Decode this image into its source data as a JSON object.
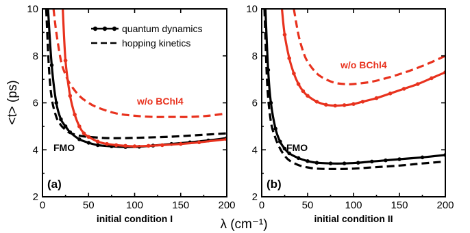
{
  "colors": {
    "red": "#e8321e",
    "black": "#000000"
  },
  "shared": {
    "xlabel": "λ (cm⁻¹)",
    "ylabel": "<t> (ps)"
  },
  "legend": {
    "entries": [
      {
        "label": "quantum dynamics",
        "style": "solid-with-dots"
      },
      {
        "label": "hopping kinetics",
        "style": "dashed"
      }
    ],
    "placement": "top-right of panel (a)"
  },
  "chart_data": [
    {
      "type": "line",
      "panel_label": "(a)",
      "xlabel": "initial condition I",
      "xlim": [
        0,
        200
      ],
      "ylim": [
        2,
        10
      ],
      "xticks": [
        0,
        50,
        100,
        150,
        200
      ],
      "yticks": [
        2,
        4,
        6,
        8,
        10
      ],
      "annotations": [
        {
          "text": "FMO",
          "color": "black"
        },
        {
          "text": "w/o BChl4",
          "color": "red"
        }
      ],
      "series": [
        {
          "name": "FMO quantum dynamics",
          "color": "black",
          "style": "solid-with-dots",
          "x": [
            6,
            10,
            15,
            20,
            25,
            30,
            40,
            50,
            60,
            75,
            90,
            105,
            120,
            140,
            160,
            180,
            200
          ],
          "y": [
            10,
            7.6,
            6.0,
            5.3,
            5.0,
            4.75,
            4.45,
            4.3,
            4.2,
            4.15,
            4.12,
            4.13,
            4.18,
            4.25,
            4.32,
            4.4,
            4.5
          ]
        },
        {
          "name": "FMO hopping kinetics",
          "color": "black",
          "style": "dashed",
          "x": [
            4,
            7,
            10,
            15,
            20,
            25,
            30,
            40,
            50,
            70,
            90,
            110,
            140,
            170,
            200
          ],
          "y": [
            10,
            7.5,
            6.2,
            5.4,
            5.05,
            4.85,
            4.72,
            4.6,
            4.55,
            4.5,
            4.5,
            4.52,
            4.56,
            4.63,
            4.7
          ]
        },
        {
          "name": "w/o BChl4 quantum dynamics",
          "color": "red",
          "style": "solid-with-dots",
          "x": [
            22,
            25,
            30,
            35,
            40,
            45,
            50,
            60,
            70,
            80,
            90,
            100,
            115,
            130,
            150,
            170,
            200
          ],
          "y": [
            10,
            7.8,
            6.3,
            5.5,
            5.0,
            4.7,
            4.55,
            4.35,
            4.25,
            4.2,
            4.17,
            4.15,
            4.17,
            4.2,
            4.25,
            4.32,
            4.45
          ]
        },
        {
          "name": "w/o BChl4 hopping kinetics",
          "color": "red",
          "style": "dashed",
          "x": [
            12,
            15,
            20,
            25,
            30,
            40,
            50,
            60,
            80,
            100,
            120,
            140,
            160,
            180,
            200
          ],
          "y": [
            10,
            9.0,
            7.8,
            7.2,
            6.8,
            6.3,
            6.0,
            5.8,
            5.55,
            5.45,
            5.4,
            5.4,
            5.4,
            5.45,
            5.55
          ]
        }
      ]
    },
    {
      "type": "line",
      "panel_label": "(b)",
      "xlabel": "initial condition II",
      "xlim": [
        0,
        200
      ],
      "ylim": [
        2,
        10
      ],
      "xticks": [
        0,
        50,
        100,
        150,
        200
      ],
      "yticks": [
        2,
        4,
        6,
        8,
        10
      ],
      "annotations": [
        {
          "text": "FMO",
          "color": "black"
        },
        {
          "text": "w/o BChl4",
          "color": "red"
        }
      ],
      "series": [
        {
          "name": "FMO quantum dynamics",
          "color": "black",
          "style": "solid-with-dots",
          "x": [
            4,
            7,
            10,
            15,
            20,
            25,
            30,
            40,
            50,
            60,
            75,
            90,
            105,
            120,
            135,
            150,
            175,
            200
          ],
          "y": [
            10,
            7.4,
            6.0,
            4.9,
            4.35,
            4.05,
            3.85,
            3.65,
            3.52,
            3.45,
            3.42,
            3.42,
            3.45,
            3.5,
            3.55,
            3.6,
            3.68,
            3.78
          ]
        },
        {
          "name": "FMO hopping kinetics",
          "color": "black",
          "style": "dashed",
          "x": [
            3,
            6,
            10,
            15,
            20,
            25,
            30,
            40,
            50,
            60,
            80,
            100,
            120,
            150,
            175,
            200
          ],
          "y": [
            10,
            6.8,
            5.2,
            4.5,
            4.05,
            3.75,
            3.55,
            3.35,
            3.25,
            3.2,
            3.18,
            3.2,
            3.25,
            3.33,
            3.42,
            3.5
          ]
        },
        {
          "name": "w/o BChl4 quantum dynamics",
          "color": "red",
          "style": "solid-with-dots",
          "x": [
            22,
            25,
            30,
            35,
            40,
            45,
            50,
            60,
            70,
            80,
            90,
            100,
            110,
            125,
            140,
            155,
            170,
            185,
            200
          ],
          "y": [
            10,
            8.9,
            7.9,
            7.25,
            6.8,
            6.5,
            6.3,
            6.05,
            5.92,
            5.88,
            5.9,
            5.95,
            6.05,
            6.2,
            6.4,
            6.6,
            6.8,
            7.05,
            7.3
          ]
        },
        {
          "name": "w/o BChl4 hopping kinetics",
          "color": "red",
          "style": "dashed",
          "x": [
            35,
            40,
            45,
            50,
            60,
            70,
            80,
            90,
            100,
            120,
            140,
            160,
            180,
            200
          ],
          "y": [
            10,
            8.9,
            8.2,
            7.75,
            7.25,
            7.0,
            6.85,
            6.8,
            6.8,
            6.9,
            7.1,
            7.35,
            7.65,
            8.0
          ]
        }
      ]
    }
  ]
}
